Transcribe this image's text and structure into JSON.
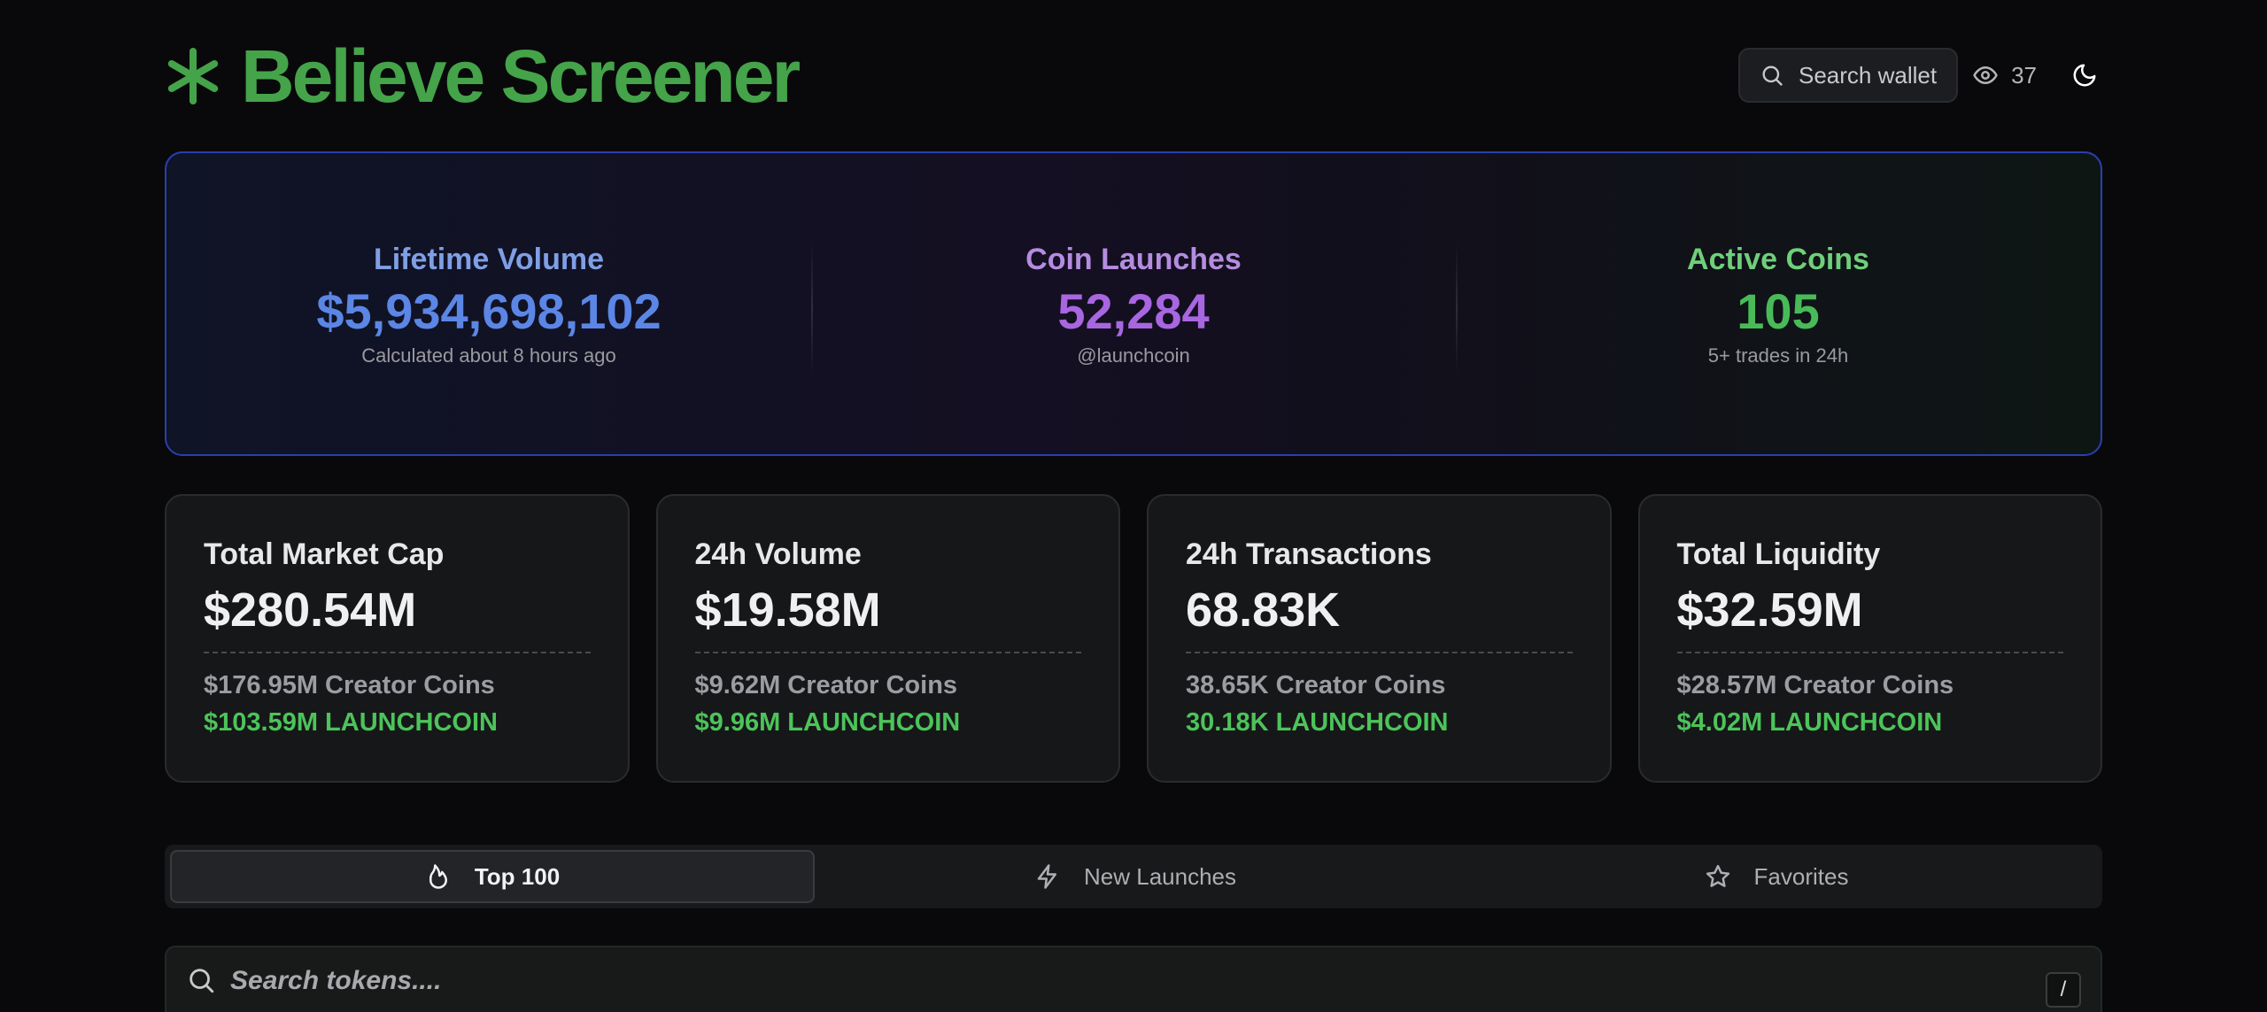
{
  "header": {
    "title": "Believe Screener",
    "search_wallet_label": "Search wallet",
    "viewers_count": "37",
    "icons": {
      "brand": "asterisk-icon",
      "search": "search-icon",
      "viewers": "eye-icon",
      "theme": "moon-icon"
    },
    "accent_color": "#45a34a"
  },
  "hero": {
    "lifetime_volume": {
      "label": "Lifetime Volume",
      "value": "$5,934,698,102",
      "sub": "Calculated about 8 hours ago"
    },
    "coin_launches": {
      "label": "Coin Launches",
      "value": "52,284",
      "sub": "@launchcoin"
    },
    "active_coins": {
      "label": "Active Coins",
      "value": "105",
      "sub": "5+ trades in 24h"
    }
  },
  "cards": [
    {
      "title": "Total Market Cap",
      "value": "$280.54M",
      "creator": "$176.95M Creator Coins",
      "launchcoin": "$103.59M LAUNCHCOIN"
    },
    {
      "title": "24h Volume",
      "value": "$19.58M",
      "creator": "$9.62M Creator Coins",
      "launchcoin": "$9.96M LAUNCHCOIN"
    },
    {
      "title": "24h Transactions",
      "value": "68.83K",
      "creator": "38.65K Creator Coins",
      "launchcoin": "30.18K LAUNCHCOIN"
    },
    {
      "title": "Total Liquidity",
      "value": "$32.59M",
      "creator": "$28.57M Creator Coins",
      "launchcoin": "$4.02M LAUNCHCOIN"
    }
  ],
  "tabs": [
    {
      "label": "Top 100",
      "icon": "flame-icon",
      "active": true
    },
    {
      "label": "New Launches",
      "icon": "zap-icon",
      "active": false
    },
    {
      "label": "Favorites",
      "icon": "star-icon",
      "active": false
    }
  ],
  "token_search": {
    "placeholder": "Search tokens....",
    "shortcut": "/"
  }
}
